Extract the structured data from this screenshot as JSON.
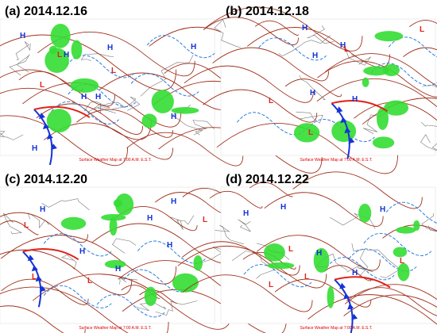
{
  "panels": [
    {
      "label": "(a) 2014.12.16",
      "caption": "Surface Weather Map at 7:00 A.M. E.S.T.",
      "centers": [
        "H",
        "H",
        "H",
        "H",
        "H",
        "H",
        "H",
        "L",
        "L",
        "L",
        "H"
      ]
    },
    {
      "label": "(b) 2014.12.18",
      "caption": "Surface Weather Map at 7:00 A.M. E.S.T.",
      "centers": [
        "H",
        "H",
        "H",
        "H",
        "H",
        "L",
        "L",
        "L",
        "L"
      ]
    },
    {
      "label": "(c) 2014.12.20",
      "caption": "Surface Weather Map at 7:00 A.M. E.S.T.",
      "centers": [
        "H",
        "H",
        "H",
        "H",
        "H",
        "H",
        "L",
        "L",
        "L",
        "L"
      ]
    },
    {
      "label": "(d) 2014.12.22",
      "caption": "Surface Weather Map at 7:00 A.M. E.S.T.",
      "centers": [
        "H",
        "H",
        "H",
        "H",
        "H",
        "L",
        "L",
        "L",
        "L"
      ]
    }
  ]
}
